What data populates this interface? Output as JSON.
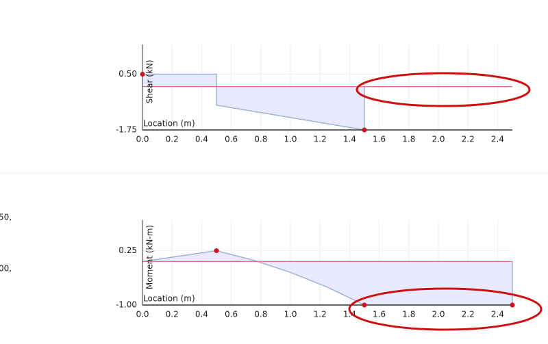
{
  "chart_data": [
    {
      "type": "line",
      "ylabel": "Shear (kN)",
      "xlabel": "Location (m)",
      "xlim": [
        0,
        2.5
      ],
      "ylim": [
        -1.75,
        1.7
      ],
      "xticks": [
        {
          "value": 0,
          "label": "0.0"
        },
        {
          "value": 0.2,
          "label": "0.2"
        },
        {
          "value": 0.4,
          "label": "0.4"
        },
        {
          "value": 0.6,
          "label": "0.6"
        },
        {
          "value": 0.8,
          "label": "0.8"
        },
        {
          "value": 1.0,
          "label": "1.0"
        },
        {
          "value": 1.2,
          "label": "1.2"
        },
        {
          "value": 1.4,
          "label": "1.4"
        },
        {
          "value": 1.6,
          "label": "1.6"
        },
        {
          "value": 1.8,
          "label": "1.8"
        },
        {
          "value": 2.0,
          "label": "2.0"
        },
        {
          "value": 2.2,
          "label": "2.2"
        },
        {
          "value": 2.4,
          "label": "2.4"
        }
      ],
      "yticks": [
        {
          "value": 0.5,
          "label": "0.50"
        },
        {
          "value": -1.75,
          "label": "-1.75"
        }
      ],
      "grid": true,
      "baseline_color": "#e07080",
      "series": [
        {
          "x": [
            0,
            0.5,
            0.5,
            1.5,
            1.5,
            2.5
          ],
          "values": [
            0.5,
            0.5,
            -0.75,
            -1.75,
            0,
            0
          ],
          "color": "#9fb3d3",
          "fill": "#e9e9ff"
        }
      ],
      "points": {
        "x": [
          0,
          1.5
        ],
        "values": [
          0.5,
          -1.75
        ],
        "color": "#d0101a"
      }
    },
    {
      "type": "line",
      "ylabel": "Moment (kN-m)",
      "xlabel": "Location (m)",
      "xlim": [
        0,
        2.5
      ],
      "ylim": [
        -1.0,
        0.95
      ],
      "xticks": [
        {
          "value": 0,
          "label": "0.0"
        },
        {
          "value": 0.2,
          "label": "0.2"
        },
        {
          "value": 0.4,
          "label": "0.4"
        },
        {
          "value": 0.6,
          "label": "0.6"
        },
        {
          "value": 0.8,
          "label": "0.8"
        },
        {
          "value": 1.0,
          "label": "1.0"
        },
        {
          "value": 1.2,
          "label": "1.2"
        },
        {
          "value": 1.4,
          "label": "1.4"
        },
        {
          "value": 1.6,
          "label": "1.6"
        },
        {
          "value": 1.8,
          "label": "1.8"
        },
        {
          "value": 2.0,
          "label": "2.0"
        },
        {
          "value": 2.2,
          "label": "2.2"
        },
        {
          "value": 2.4,
          "label": "2.4"
        }
      ],
      "yticks": [
        {
          "value": 0.25,
          "label": "0.25"
        },
        {
          "value": -1.0,
          "label": "-1.00"
        }
      ],
      "grid": true,
      "baseline_color": "#e07080",
      "series": [
        {
          "x": [
            0,
            0.5,
            0.75,
            1.0,
            1.25,
            1.5,
            2.5,
            2.5
          ],
          "values": [
            0,
            0.25,
            0.03,
            -0.25,
            -0.59,
            -1.0,
            -1.0,
            0
          ],
          "color": "#9fb3d3",
          "fill": "#e9e9ff"
        }
      ],
      "points": {
        "x": [
          0.5,
          1.5,
          2.5
        ],
        "values": [
          0.25,
          -1.0,
          -1.0
        ],
        "color": "#d0101a"
      }
    }
  ],
  "sidebar_fragments": [
    "50,",
    "00,"
  ]
}
